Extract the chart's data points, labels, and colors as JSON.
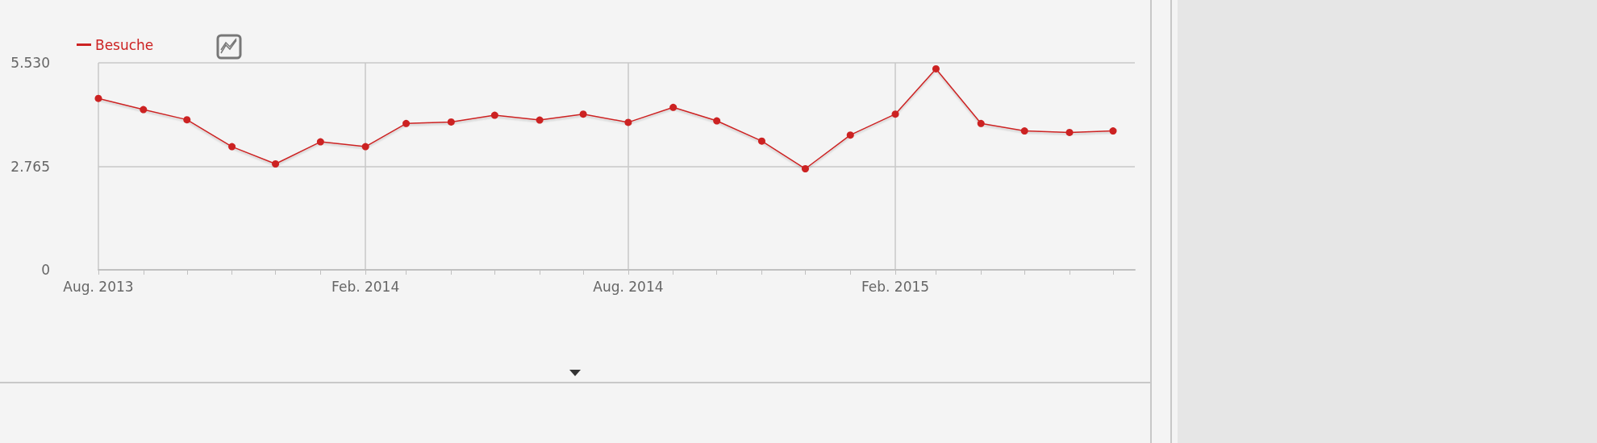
{
  "chart_data": {
    "type": "line",
    "x": [
      "2013-08",
      "2013-09",
      "2013-10",
      "2013-11",
      "2013-12",
      "2014-01",
      "2014-02",
      "2014-03",
      "2014-04",
      "2014-05",
      "2014-06",
      "2014-07",
      "2014-08",
      "2014-09",
      "2014-10",
      "2014-11",
      "2014-12",
      "2015-01",
      "2015-02",
      "2015-03",
      "2015-04",
      "2015-05",
      "2015-06",
      "2015-07"
    ],
    "series": [
      {
        "name": "Besuche",
        "color": "#cc2222",
        "values": [
          4580,
          4280,
          4010,
          3290,
          2830,
          3420,
          3290,
          3910,
          3950,
          4130,
          4000,
          4160,
          3940,
          4340,
          3980,
          3440,
          2700,
          3600,
          4160,
          5370,
          3910,
          3710,
          3670,
          3710
        ]
      }
    ],
    "xlim": [
      "2013-08",
      "2015-07-16"
    ],
    "xticks": [
      {
        "value": "2013-08",
        "label": "Aug. 2013"
      },
      {
        "value": "2013-09",
        "label": null
      },
      {
        "value": "2013-10",
        "label": null
      },
      {
        "value": "2013-11",
        "label": null
      },
      {
        "value": "2013-12",
        "label": null
      },
      {
        "value": "2014-01",
        "label": null
      },
      {
        "value": "2014-02",
        "label": "Feb. 2014"
      },
      {
        "value": "2014-03",
        "label": null
      },
      {
        "value": "2014-04",
        "label": null
      },
      {
        "value": "2014-05",
        "label": null
      },
      {
        "value": "2014-06",
        "label": null
      },
      {
        "value": "2014-07",
        "label": null
      },
      {
        "value": "2014-08",
        "label": "Aug. 2014"
      },
      {
        "value": "2014-09",
        "label": null
      },
      {
        "value": "2014-10",
        "label": null
      },
      {
        "value": "2014-11",
        "label": null
      },
      {
        "value": "2014-12",
        "label": null
      },
      {
        "value": "2015-01",
        "label": null
      },
      {
        "value": "2015-02",
        "label": "Feb. 2015"
      },
      {
        "value": "2015-03",
        "label": null
      },
      {
        "value": "2015-04",
        "label": null
      },
      {
        "value": "2015-05",
        "label": null
      },
      {
        "value": "2015-06",
        "label": null
      },
      {
        "value": "2015-07",
        "label": null
      }
    ],
    "ylim": [
      0,
      5530
    ],
    "yticks": [
      0,
      {
        "value": 2765,
        "label": "2.765"
      },
      {
        "value": 5530,
        "label": "5.530"
      }
    ],
    "grid": true,
    "legend": "top left",
    "marker": "circle",
    "line_style": "solid"
  }
}
